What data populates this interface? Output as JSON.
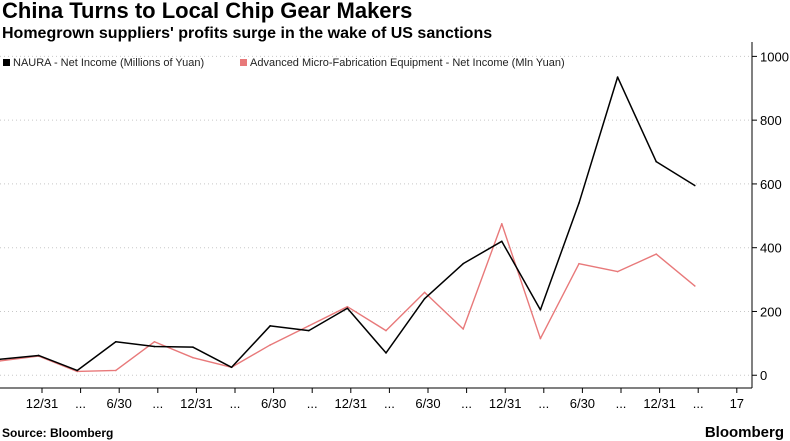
{
  "header": {
    "title": "China Turns to Local Chip Gear Makers",
    "subtitle": "Homegrown suppliers' profits surge in the wake of US sanctions"
  },
  "footer": {
    "source": "Source: Bloomberg",
    "brand": "Bloomberg"
  },
  "chart_data": {
    "type": "line",
    "title": "China Turns to Local Chip Gear Makers",
    "subtitle": "Homegrown suppliers' profits surge in the wake of US sanctions",
    "x_tick_labels": [
      "12/31",
      "...",
      "6/30",
      "...",
      "12/31",
      "...",
      "6/30",
      "...",
      "12/31",
      "...",
      "6/30",
      "...",
      "12/31",
      "...",
      "6/30",
      "...",
      "12/31",
      "...",
      "17"
    ],
    "y_ticks": [
      0,
      200,
      400,
      600,
      800,
      1000
    ],
    "ylim": [
      -40,
      1020
    ],
    "y_axis_side": "right",
    "grid": "horizontal dotted",
    "legend_position": "top-left",
    "series": [
      {
        "name": "NAURA - Net Income (Millions of Yuan)",
        "color": "#000000",
        "values": [
          50,
          62,
          15,
          105,
          90,
          88,
          25,
          155,
          140,
          210,
          70,
          240,
          350,
          420,
          205,
          540,
          935,
          670,
          595
        ]
      },
      {
        "name": "Advanced Micro-Fabrication Equipment - Net Income (Mln Yuan)",
        "color": "#e8797a",
        "values": [
          45,
          60,
          12,
          15,
          105,
          55,
          25,
          95,
          155,
          215,
          140,
          260,
          145,
          475,
          115,
          350,
          325,
          380,
          280
        ]
      }
    ]
  }
}
